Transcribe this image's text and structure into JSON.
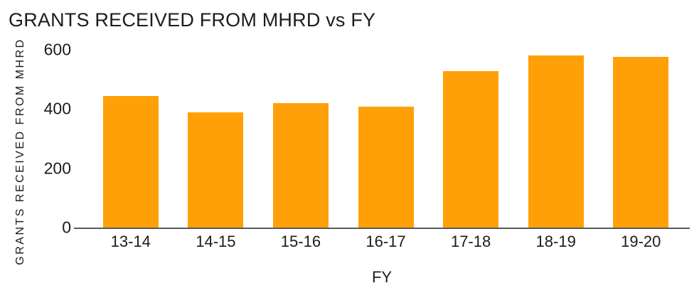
{
  "chart_data": {
    "type": "bar",
    "title": "GRANTS RECEIVED FROM MHRD vs FY",
    "xlabel": "FY",
    "ylabel": "GRANTS RECEIVED FROM MHRD",
    "categories": [
      "13-14",
      "14-15",
      "15-16",
      "16-17",
      "17-18",
      "18-19",
      "19-20"
    ],
    "values": [
      445,
      390,
      420,
      407,
      527,
      582,
      576
    ],
    "yticks": [
      0,
      200,
      400,
      600
    ],
    "ylim": [
      0,
      600
    ],
    "grid": false,
    "legend": false,
    "bar_color": "#FFA008",
    "axis_line_color": "#58595B",
    "text_color": "#1C1C1C"
  }
}
